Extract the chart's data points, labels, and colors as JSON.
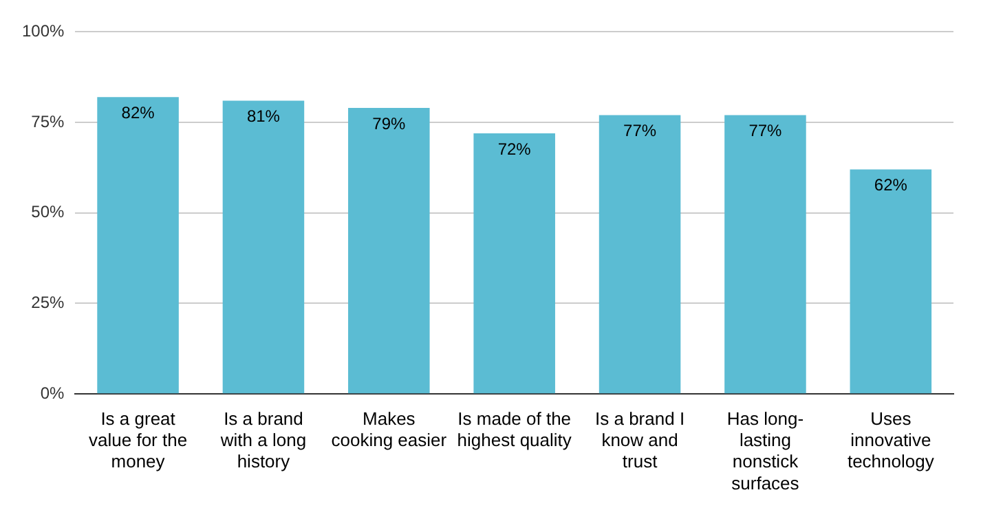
{
  "chart_data": {
    "type": "bar",
    "categories": [
      "Is a great value for the money",
      "Is a brand with a long history",
      "Makes cooking easier",
      "Is made of the highest quality",
      "Is a brand I know and trust",
      "Has long-lasting nonstick surfaces",
      "Uses innovative technology"
    ],
    "values": [
      82,
      81,
      79,
      72,
      77,
      77,
      62
    ],
    "value_labels": [
      "82%",
      "81%",
      "79%",
      "72%",
      "77%",
      "77%",
      "62%"
    ],
    "color": "#5bbcd3",
    "ylim": [
      0,
      100
    ],
    "yticks": [
      {
        "value": 0,
        "label": "0%"
      },
      {
        "value": 25,
        "label": "25%"
      },
      {
        "value": 50,
        "label": "50%"
      },
      {
        "value": 75,
        "label": "75%"
      },
      {
        "value": 100,
        "label": "100%"
      }
    ],
    "grid": "y",
    "legend": false
  }
}
